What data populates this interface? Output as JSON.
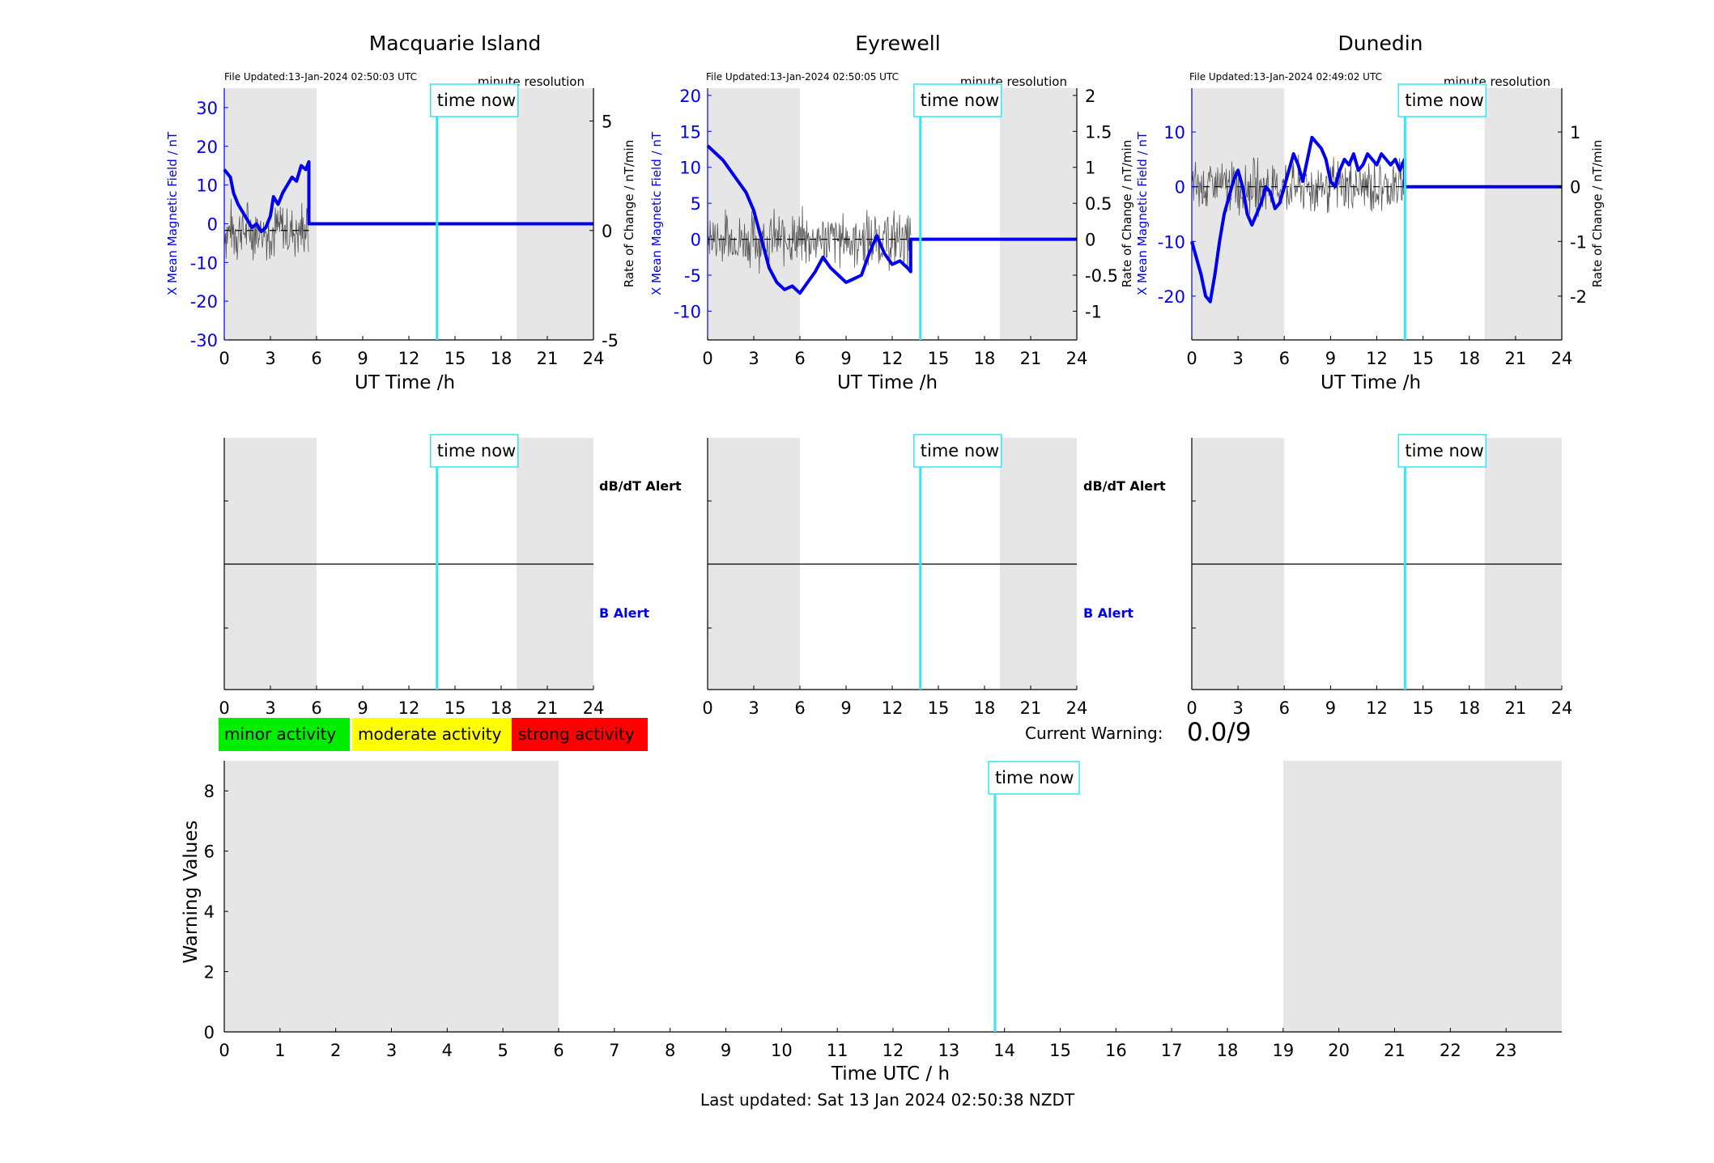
{
  "colors": {
    "field": "#0000ee",
    "rate": "#555555",
    "now_line": "#33e6f2",
    "night_band": "#e6e6e6",
    "minor": "#00ee00",
    "moderate": "#ffff00",
    "strong": "#ff0000"
  },
  "common": {
    "x_ticks": [
      0,
      3,
      6,
      9,
      12,
      15,
      18,
      21,
      24
    ],
    "xlabel": "UT Time /h",
    "ylabel_left": "X Mean Magnetic Field / nT",
    "ylabel_right": "Rate of Change / nT/min",
    "resolution": "minute resolution",
    "time_now_label": "time now",
    "time_now_h": 13.83,
    "night_bands": [
      [
        0,
        6
      ],
      [
        19,
        24
      ]
    ],
    "alert_labels": [
      "dB/dT Alert",
      "B Alert"
    ]
  },
  "chart_data": [
    {
      "type": "line",
      "title": "Macquarie Island",
      "file_updated": "File Updated:13-Jan-2024 02:50:03 UTC",
      "xlim": [
        0,
        24
      ],
      "ylim_left": [
        -30,
        35
      ],
      "yticks_left": [
        -30,
        -20,
        -10,
        0,
        10,
        20,
        30
      ],
      "ylim_right": [
        -5,
        6.5
      ],
      "yticks_right": [
        -5,
        0,
        5
      ],
      "series": [
        {
          "values_x": [
            0,
            0.2,
            0.4,
            0.6,
            0.9,
            1.2,
            1.5,
            1.8,
            2.1,
            2.4,
            2.7,
            3.0,
            3.2,
            3.5,
            3.8,
            4.1,
            4.4,
            4.7,
            5.0,
            5.3,
            5.5,
            5.5,
            24
          ],
          "values_y": [
            14,
            13,
            12,
            8,
            5,
            3,
            1,
            -1,
            0,
            -2,
            -1,
            2,
            7,
            5,
            8,
            10,
            12,
            11,
            15,
            14,
            16,
            0,
            0
          ]
        }
      ]
    },
    {
      "type": "line",
      "title": "Eyrewell",
      "file_updated": "File Updated:13-Jan-2024 02:50:05 UTC",
      "xlim": [
        0,
        24
      ],
      "ylim_left": [
        -14,
        21
      ],
      "yticks_left": [
        -10,
        -5,
        0,
        5,
        10,
        15,
        20
      ],
      "ylim_right": [
        -1.4,
        2.1
      ],
      "yticks_right": [
        -1,
        -0.5,
        0,
        0.5,
        1,
        1.5,
        2
      ],
      "series": [
        {
          "values_x": [
            0,
            0.5,
            1.0,
            1.5,
            2.0,
            2.5,
            3.0,
            3.5,
            4.0,
            4.5,
            5.0,
            5.5,
            6.0,
            6.5,
            7.0,
            7.5,
            8.0,
            8.5,
            9.0,
            9.5,
            10.0,
            10.5,
            11.0,
            11.5,
            12.0,
            12.5,
            13.0,
            13.2,
            13.2,
            24
          ],
          "values_y": [
            13,
            12,
            11,
            9.5,
            8,
            6.5,
            4,
            0,
            -4,
            -6,
            -7,
            -6.5,
            -7.5,
            -6,
            -4.5,
            -2.5,
            -4,
            -5,
            -6,
            -5.5,
            -5,
            -2,
            0.5,
            -2,
            -3.5,
            -3,
            -4,
            -4.5,
            0,
            0
          ]
        }
      ]
    },
    {
      "type": "line",
      "title": "Dunedin",
      "file_updated": "File Updated:13-Jan-2024 02:49:02 UTC",
      "xlim": [
        0,
        24
      ],
      "ylim_left": [
        -28,
        18
      ],
      "yticks_left": [
        -20,
        -10,
        0,
        10
      ],
      "ylim_right": [
        -2.8,
        1.8
      ],
      "yticks_right": [
        -2,
        -1,
        0,
        1
      ],
      "series": [
        {
          "values_x": [
            0,
            0.3,
            0.6,
            0.9,
            1.2,
            1.5,
            1.8,
            2.1,
            2.4,
            2.7,
            3.0,
            3.3,
            3.6,
            3.9,
            4.2,
            4.5,
            4.8,
            5.1,
            5.4,
            5.7,
            6.0,
            6.3,
            6.6,
            6.9,
            7.2,
            7.5,
            7.8,
            8.1,
            8.4,
            8.7,
            9.0,
            9.3,
            9.6,
            9.9,
            10.2,
            10.5,
            10.8,
            11.1,
            11.4,
            11.7,
            12.0,
            12.3,
            12.6,
            12.9,
            13.2,
            13.5,
            13.8,
            13.8,
            24
          ],
          "values_y": [
            -10,
            -13,
            -16,
            -20,
            -21,
            -16,
            -10,
            -5,
            -2,
            1,
            3,
            0,
            -5,
            -7,
            -5,
            -3,
            0,
            -1,
            -4,
            -3,
            0,
            3,
            6,
            4,
            1,
            5,
            9,
            8,
            7,
            5,
            1,
            0,
            3,
            5,
            4,
            6,
            3,
            4,
            6,
            5,
            4,
            6,
            5,
            4,
            5,
            3,
            5,
            0,
            0
          ]
        }
      ]
    },
    {
      "type": "line",
      "title": "",
      "xlabel": "Time UTC / h",
      "ylabel": "Warning Values",
      "xlim": [
        0,
        24
      ],
      "ylim": [
        0,
        9
      ],
      "x_ticks": [
        0,
        1,
        2,
        3,
        4,
        5,
        6,
        7,
        8,
        9,
        10,
        11,
        12,
        13,
        14,
        15,
        16,
        17,
        18,
        19,
        20,
        21,
        22,
        23
      ],
      "y_ticks": [
        0,
        2,
        4,
        6,
        8
      ],
      "series": []
    }
  ],
  "legend": {
    "minor": "minor activity",
    "moderate": "moderate activity",
    "strong": "strong activity"
  },
  "warning": {
    "label": "Current Warning:",
    "value": "0.0/9"
  },
  "footer": {
    "last_updated": "Last updated: Sat 13 Jan 2024 02:50:38 NZDT"
  }
}
